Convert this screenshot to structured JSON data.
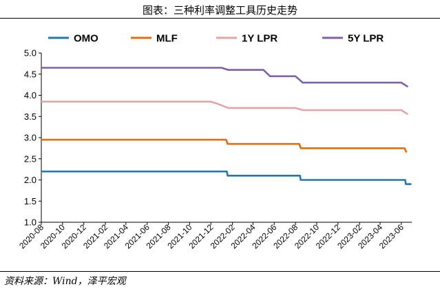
{
  "title": "图表：三种利率调整工具历史走势",
  "source": "资料来源：Wind，泽平宏观",
  "chart_data": {
    "type": "line",
    "title": "图表：三种利率调整工具历史走势",
    "xlabel": "",
    "ylabel": "",
    "ylim": [
      1.0,
      5.0
    ],
    "yticks": [
      "1.0",
      "1.5",
      "2.0",
      "2.5",
      "3.0",
      "3.5",
      "4.0",
      "4.5",
      "5.0"
    ],
    "xlim": [
      "2020-08",
      "2023-07"
    ],
    "xticks": [
      "2020-08",
      "2020-10",
      "2020-12",
      "2021-02",
      "2021-04",
      "2021-06",
      "2021-08",
      "2021-10",
      "2021-12",
      "2022-02",
      "2022-04",
      "2022-06",
      "2022-08",
      "2022-10",
      "2022-12",
      "2023-02",
      "2023-04",
      "2023-06"
    ],
    "grid": false,
    "legend_position": "top",
    "series": [
      {
        "name": "OMO",
        "color": "#1f77b4",
        "points": [
          [
            "2020-08-01",
            2.2
          ],
          [
            "2022-01-16",
            2.2
          ],
          [
            "2022-01-18",
            2.1
          ],
          [
            "2022-08-14",
            2.1
          ],
          [
            "2022-08-16",
            2.0
          ],
          [
            "2023-06-12",
            2.0
          ],
          [
            "2023-06-14",
            1.9
          ],
          [
            "2023-06-30",
            1.9
          ]
        ]
      },
      {
        "name": "MLF",
        "color": "#e46c0a",
        "points": [
          [
            "2020-08-01",
            2.95
          ],
          [
            "2022-01-14",
            2.95
          ],
          [
            "2022-01-18",
            2.85
          ],
          [
            "2022-08-12",
            2.85
          ],
          [
            "2022-08-16",
            2.75
          ],
          [
            "2023-06-10",
            2.75
          ],
          [
            "2023-06-16",
            2.65
          ]
        ]
      },
      {
        "name": "1Y LPR",
        "color": "#e6a3a3",
        "points": [
          [
            "2020-08-01",
            3.85
          ],
          [
            "2021-12-01",
            3.85
          ],
          [
            "2021-12-20",
            3.8
          ],
          [
            "2022-01-20",
            3.7
          ],
          [
            "2022-08-01",
            3.7
          ],
          [
            "2022-08-22",
            3.65
          ],
          [
            "2023-06-01",
            3.65
          ],
          [
            "2023-06-20",
            3.55
          ]
        ]
      },
      {
        "name": "5Y LPR",
        "color": "#7e5fa8",
        "points": [
          [
            "2020-08-01",
            4.65
          ],
          [
            "2022-01-01",
            4.65
          ],
          [
            "2022-01-20",
            4.6
          ],
          [
            "2022-05-01",
            4.6
          ],
          [
            "2022-05-20",
            4.45
          ],
          [
            "2022-08-01",
            4.45
          ],
          [
            "2022-08-22",
            4.3
          ],
          [
            "2023-06-01",
            4.3
          ],
          [
            "2023-06-20",
            4.2
          ]
        ]
      }
    ]
  }
}
